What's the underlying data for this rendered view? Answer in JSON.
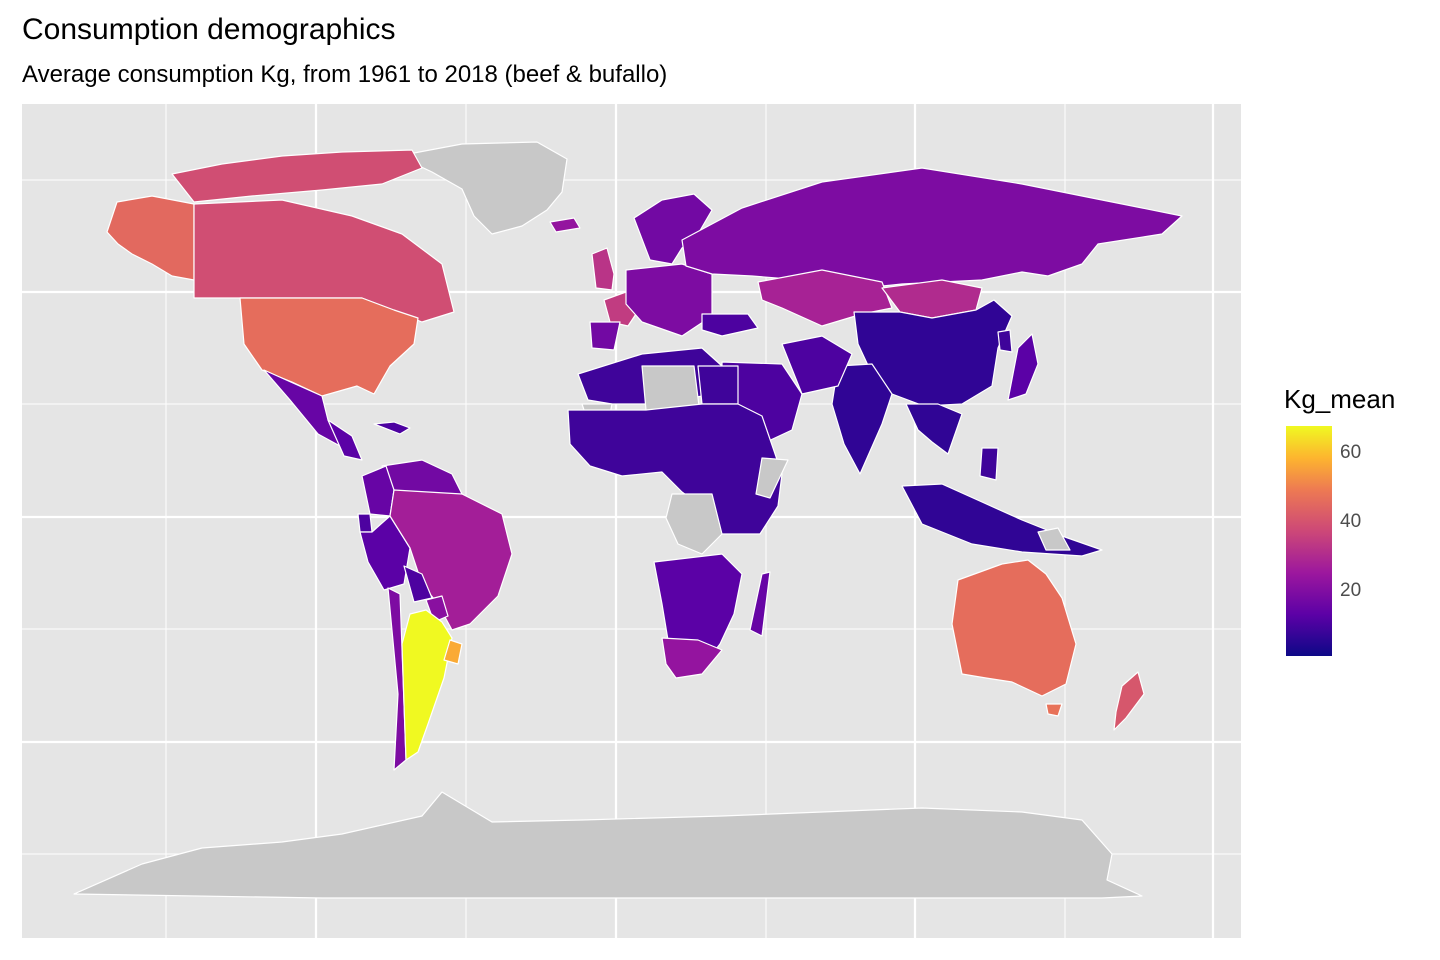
{
  "title": "Consumption demographics",
  "subtitle": "Average consumption Kg, from 1961 to 2018 (beef & bufallo)",
  "legend": {
    "title": "Kg_mean",
    "colorscale": [
      "#0d0887",
      "#5c01a6",
      "#9c179e",
      "#cc4778",
      "#ed7953",
      "#fdb42f",
      "#f0f921"
    ],
    "range": [
      1,
      68
    ],
    "ticks": [
      {
        "label": "20",
        "value": 20
      },
      {
        "label": "40",
        "value": 40
      },
      {
        "label": "60",
        "value": 60
      }
    ]
  },
  "colors": {
    "panel_background": "#e5e5e5",
    "gridline": "#ffffff",
    "missing_data": "#c8c8c8",
    "country_border": "#ffffff"
  },
  "map_data": {
    "type": "choropleth",
    "projection": "world equirectangular",
    "value_field": "Kg_mean",
    "no_data_regions": [
      "Greenland",
      "Antarctica",
      "Libya",
      "Western Sahara",
      "Democratic Republic of the Congo",
      "Somalia",
      "Papua New Guinea"
    ]
  }
}
